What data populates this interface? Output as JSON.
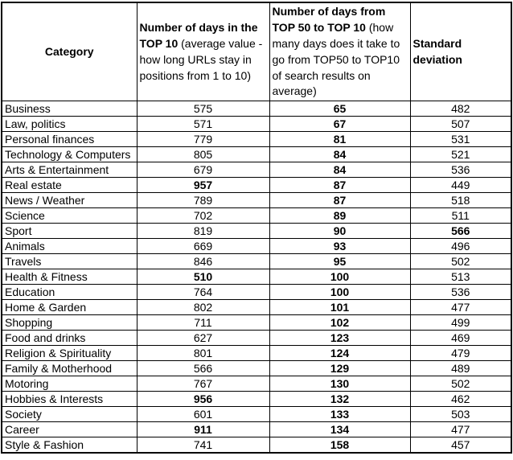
{
  "chart_data": {
    "type": "table",
    "title": "",
    "columns": [
      {
        "bold": "Category",
        "normal": ""
      },
      {
        "bold": "Number of days in the TOP 10 ",
        "normal": "(average value - how long URLs stay in positions from 1 to 10)"
      },
      {
        "bold": "Number of days from TOP 50 to TOP 10 ",
        "normal": "(how many days does it take to go from TOP50 to TOP10 of search results on average)"
      },
      {
        "bold": "Standard deviation",
        "normal": ""
      }
    ],
    "rows": [
      {
        "category": "Business",
        "days_top10": "575",
        "days_top50_to_top10": "65",
        "std_dev": "482",
        "days_top10_bold": false,
        "std_dev_bold": false
      },
      {
        "category": "Law, politics",
        "days_top10": "571",
        "days_top50_to_top10": "67",
        "std_dev": "507",
        "days_top10_bold": false,
        "std_dev_bold": false
      },
      {
        "category": "Personal finances",
        "days_top10": "779",
        "days_top50_to_top10": "81",
        "std_dev": "531",
        "days_top10_bold": false,
        "std_dev_bold": false
      },
      {
        "category": "Technology & Computers",
        "days_top10": "805",
        "days_top50_to_top10": "84",
        "std_dev": "521",
        "days_top10_bold": false,
        "std_dev_bold": false
      },
      {
        "category": "Arts & Entertainment",
        "days_top10": "679",
        "days_top50_to_top10": "84",
        "std_dev": "536",
        "days_top10_bold": false,
        "std_dev_bold": false
      },
      {
        "category": "Real estate",
        "days_top10": "957",
        "days_top50_to_top10": "87",
        "std_dev": "449",
        "days_top10_bold": true,
        "std_dev_bold": false
      },
      {
        "category": "News / Weather",
        "days_top10": "789",
        "days_top50_to_top10": "87",
        "std_dev": "518",
        "days_top10_bold": false,
        "std_dev_bold": false
      },
      {
        "category": "Science",
        "days_top10": "702",
        "days_top50_to_top10": "89",
        "std_dev": "511",
        "days_top10_bold": false,
        "std_dev_bold": false
      },
      {
        "category": "Sport",
        "days_top10": "819",
        "days_top50_to_top10": "90",
        "std_dev": "566",
        "days_top10_bold": false,
        "std_dev_bold": true
      },
      {
        "category": "Animals",
        "days_top10": "669",
        "days_top50_to_top10": "93",
        "std_dev": "496",
        "days_top10_bold": false,
        "std_dev_bold": false
      },
      {
        "category": "Travels",
        "days_top10": "846",
        "days_top50_to_top10": "95",
        "std_dev": "502",
        "days_top10_bold": false,
        "std_dev_bold": false
      },
      {
        "category": "Health & Fitness",
        "days_top10": "510",
        "days_top50_to_top10": "100",
        "std_dev": "513",
        "days_top10_bold": true,
        "std_dev_bold": false
      },
      {
        "category": "Education",
        "days_top10": "764",
        "days_top50_to_top10": "100",
        "std_dev": "536",
        "days_top10_bold": false,
        "std_dev_bold": false
      },
      {
        "category": "Home & Garden",
        "days_top10": "802",
        "days_top50_to_top10": "101",
        "std_dev": "477",
        "days_top10_bold": false,
        "std_dev_bold": false
      },
      {
        "category": "Shopping",
        "days_top10": "711",
        "days_top50_to_top10": "102",
        "std_dev": "499",
        "days_top10_bold": false,
        "std_dev_bold": false
      },
      {
        "category": "Food and drinks",
        "days_top10": "627",
        "days_top50_to_top10": "123",
        "std_dev": "469",
        "days_top10_bold": false,
        "std_dev_bold": false
      },
      {
        "category": "Religion & Spirituality",
        "days_top10": "801",
        "days_top50_to_top10": "124",
        "std_dev": "479",
        "days_top10_bold": false,
        "std_dev_bold": false
      },
      {
        "category": "Family & Motherhood",
        "days_top10": "566",
        "days_top50_to_top10": "129",
        "std_dev": "489",
        "days_top10_bold": false,
        "std_dev_bold": false
      },
      {
        "category": "Motoring",
        "days_top10": "767",
        "days_top50_to_top10": "130",
        "std_dev": "502",
        "days_top10_bold": false,
        "std_dev_bold": false
      },
      {
        "category": "Hobbies & Interests",
        "days_top10": "956",
        "days_top50_to_top10": "132",
        "std_dev": "462",
        "days_top10_bold": true,
        "std_dev_bold": false
      },
      {
        "category": "Society",
        "days_top10": "601",
        "days_top50_to_top10": "133",
        "std_dev": "503",
        "days_top10_bold": false,
        "std_dev_bold": false
      },
      {
        "category": "Career",
        "days_top10": "911",
        "days_top50_to_top10": "134",
        "std_dev": "477",
        "days_top10_bold": true,
        "std_dev_bold": false
      },
      {
        "category": "Style & Fashion",
        "days_top10": "741",
        "days_top50_to_top10": "158",
        "std_dev": "457",
        "days_top10_bold": false,
        "std_dev_bold": false
      }
    ],
    "layout": {
      "grid": true,
      "border_color": "#000000",
      "background": "#ffffff"
    }
  }
}
